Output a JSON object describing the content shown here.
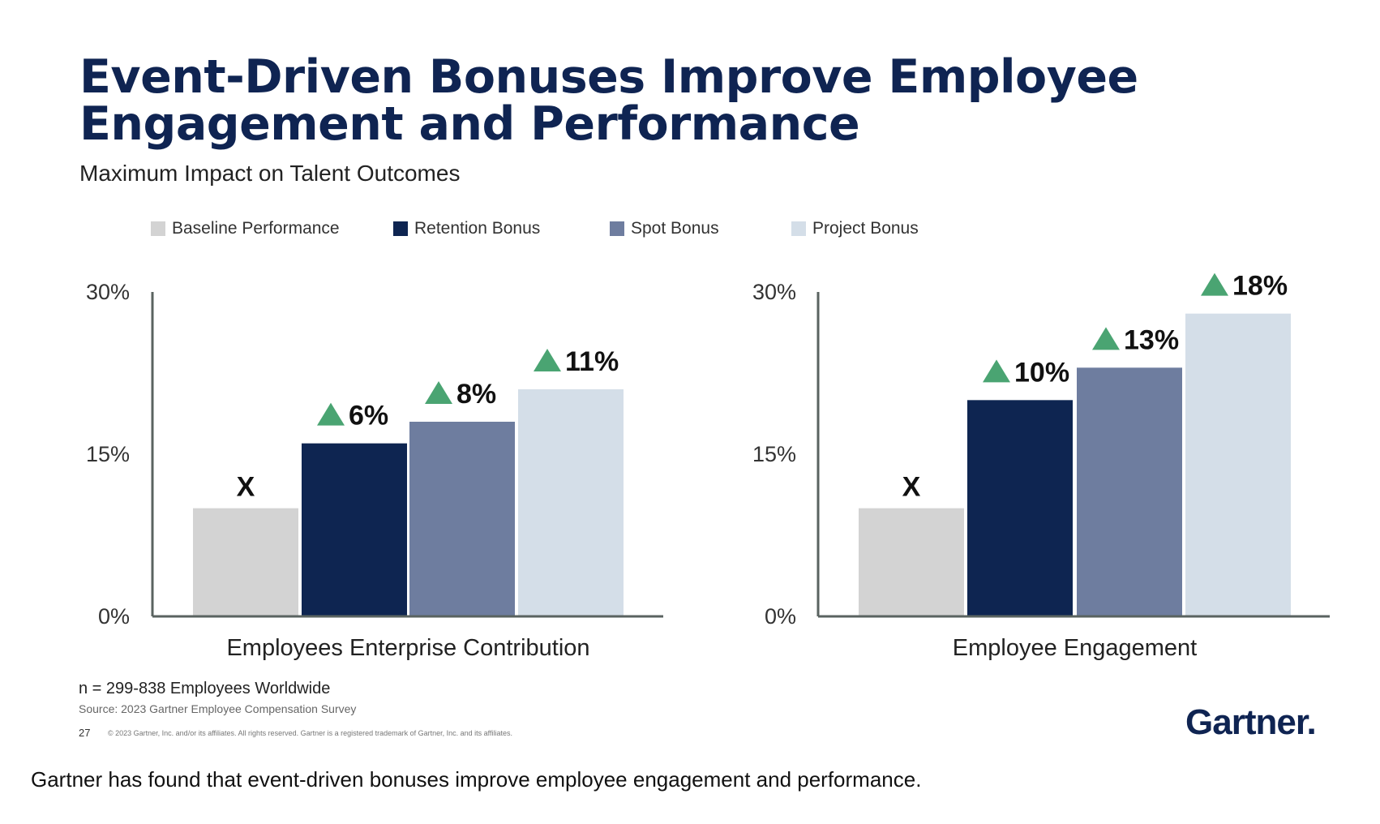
{
  "title": "Event-Driven Bonuses Improve Employee Engagement and Performance",
  "subtitle": "Maximum Impact on Talent Outcomes",
  "legend": [
    {
      "label": "Baseline Performance",
      "color": "#d3d3d3"
    },
    {
      "label": "Retention Bonus",
      "color": "#0e2551"
    },
    {
      "label": "Spot Bonus",
      "color": "#6e7d9f"
    },
    {
      "label": "Project Bonus",
      "color": "#d4dee8"
    }
  ],
  "chart_data": [
    {
      "type": "bar",
      "title": "Employees Enterprise Contribution",
      "categories": [
        "Baseline Performance",
        "Retention Bonus",
        "Spot Bonus",
        "Project Bonus"
      ],
      "values": [
        10,
        16,
        18,
        21
      ],
      "labels": [
        "X",
        "6%",
        "8%",
        "11%"
      ],
      "yticks": [
        "0%",
        "15%",
        "30%"
      ],
      "ylim": [
        0,
        30
      ]
    },
    {
      "type": "bar",
      "title": "Employee Engagement",
      "categories": [
        "Baseline Performance",
        "Retention Bonus",
        "Spot Bonus",
        "Project Bonus"
      ],
      "values": [
        10,
        20,
        23,
        28
      ],
      "labels": [
        "X",
        "10%",
        "13%",
        "18%"
      ],
      "yticks": [
        "0%",
        "15%",
        "30%"
      ],
      "ylim": [
        0,
        30
      ]
    }
  ],
  "footer": {
    "note": "n = 299-838 Employees Worldwide",
    "source": "Source: 2023 Gartner Employee Compensation Survey",
    "page": "27",
    "copyright": "© 2023 Gartner, Inc. and/or its affiliates. All rights reserved. Gartner is a registered trademark of Gartner, Inc. and its affiliates.",
    "logo": "Gartner."
  },
  "caption": "Gartner has found that event-driven bonuses improve employee engagement and performance.",
  "colors": {
    "up_arrow": "#4aa472",
    "axis": "#5a6360"
  }
}
